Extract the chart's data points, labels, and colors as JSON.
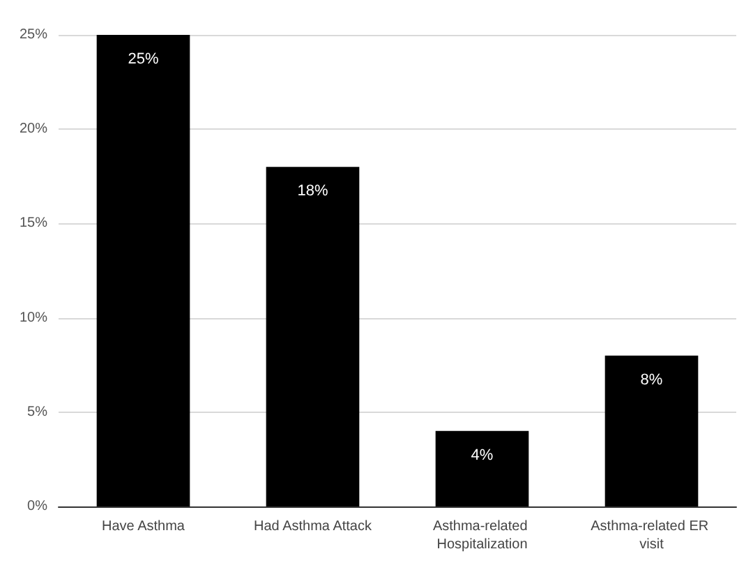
{
  "chart_data": {
    "type": "bar",
    "categories": [
      "Have Asthma",
      "Had Asthma Attack",
      "Asthma-related Hospitalization",
      "Asthma-related ER visit"
    ],
    "values": [
      25,
      18,
      4,
      8
    ],
    "color": "#000000",
    "value_labels": [
      "25%",
      "18%",
      "4%",
      "8%"
    ],
    "ylim": [
      0,
      25
    ],
    "yticks": [
      {
        "value": 0,
        "label": "0%"
      },
      {
        "value": 5,
        "label": "5%"
      },
      {
        "value": 10,
        "label": "10%"
      },
      {
        "value": 15,
        "label": "15%"
      },
      {
        "value": 20,
        "label": "20%"
      },
      {
        "value": 25,
        "label": "25%"
      }
    ],
    "grid": "y"
  }
}
